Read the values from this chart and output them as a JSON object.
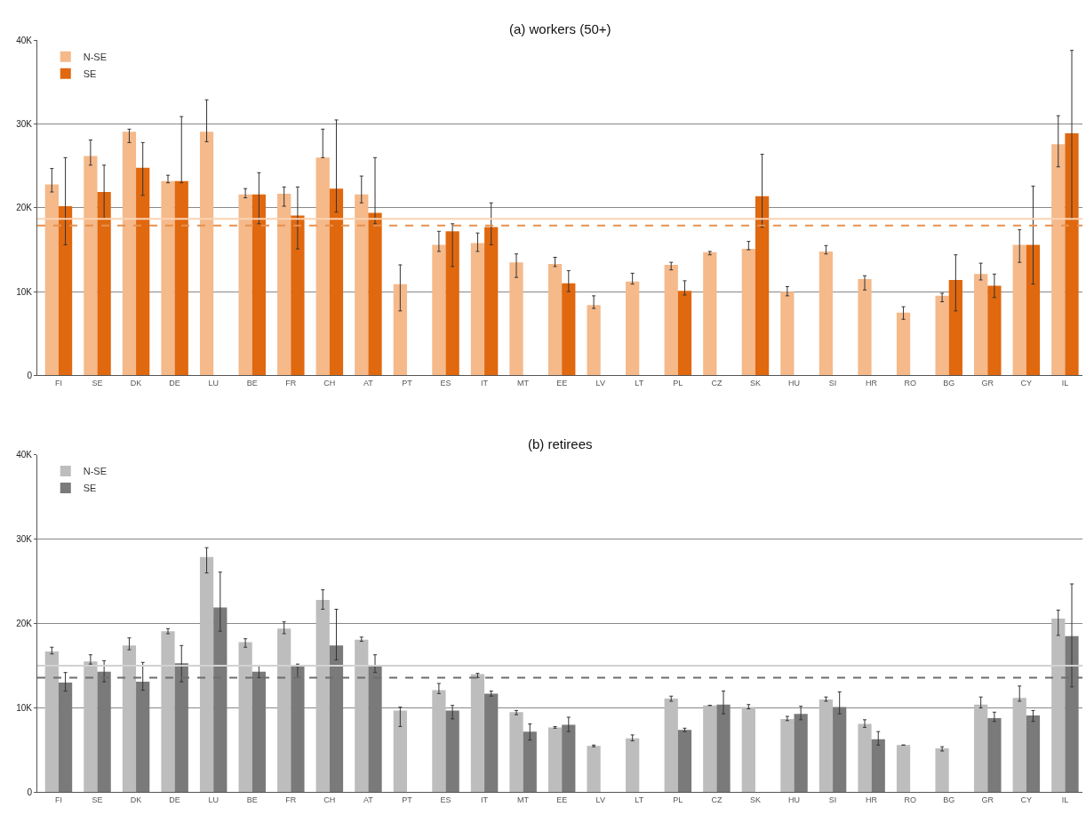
{
  "chart_data": [
    {
      "type": "bar",
      "title": "(a) workers (50+)",
      "categories": [
        "FI",
        "SE",
        "DK",
        "DE",
        "LU",
        "BE",
        "FR",
        "CH",
        "AT",
        "PT",
        "ES",
        "IT",
        "MT",
        "EE",
        "LV",
        "LT",
        "PL",
        "CZ",
        "SK",
        "HU",
        "SI",
        "HR",
        "RO",
        "BG",
        "GR",
        "CY",
        "IL"
      ],
      "series": [
        {
          "name": "N-SE",
          "color": "#f5b98a",
          "values": [
            22.8,
            26.2,
            29.1,
            23.2,
            29.1,
            21.6,
            21.7,
            26.0,
            21.6,
            10.9,
            15.6,
            15.8,
            13.5,
            13.3,
            8.4,
            11.2,
            13.2,
            14.7,
            15.1,
            10.0,
            14.8,
            11.5,
            7.5,
            9.5,
            12.1,
            15.6,
            27.6
          ],
          "errors": [
            [
              21.9,
              24.7
            ],
            [
              25.1,
              28.1
            ],
            [
              27.8,
              29.4
            ],
            [
              23.0,
              23.9
            ],
            [
              27.9,
              32.9
            ],
            [
              21.2,
              22.3
            ],
            [
              20.2,
              22.5
            ],
            [
              26.0,
              29.4
            ],
            [
              20.6,
              23.8
            ],
            [
              7.7,
              13.2
            ],
            [
              14.8,
              17.2
            ],
            [
              14.8,
              17.0
            ],
            [
              11.7,
              14.5
            ],
            [
              13.0,
              14.1
            ],
            [
              8.0,
              9.5
            ],
            [
              10.9,
              12.2
            ],
            [
              12.6,
              13.5
            ],
            [
              14.4,
              14.8
            ],
            [
              15.0,
              16.0
            ],
            [
              9.5,
              10.6
            ],
            [
              14.5,
              15.5
            ],
            [
              10.2,
              11.9
            ],
            [
              6.7,
              8.2
            ],
            [
              8.8,
              9.8
            ],
            [
              11.4,
              13.4
            ],
            [
              13.5,
              17.4
            ],
            [
              24.9,
              31.0
            ]
          ]
        },
        {
          "name": "SE",
          "color": "#e0680f",
          "values": [
            20.2,
            21.9,
            24.8,
            23.2,
            null,
            21.6,
            19.1,
            22.3,
            19.4,
            null,
            17.2,
            17.7,
            null,
            11.0,
            null,
            null,
            10.1,
            null,
            21.4,
            null,
            null,
            null,
            null,
            11.4,
            10.7,
            15.6,
            28.9
          ],
          "errors": [
            [
              15.6,
              26.0
            ],
            [
              18.7,
              25.1
            ],
            [
              21.5,
              27.8
            ],
            [
              23.0,
              30.9
            ],
            null,
            [
              18.1,
              24.2
            ],
            [
              15.1,
              22.5
            ],
            [
              19.5,
              30.5
            ],
            [
              18.1,
              26.0
            ],
            null,
            [
              13.0,
              18.1
            ],
            [
              15.6,
              20.6
            ],
            null,
            [
              10.0,
              12.5
            ],
            null,
            null,
            [
              9.6,
              11.3
            ],
            null,
            [
              17.7,
              26.4
            ],
            null,
            null,
            null,
            null,
            [
              7.7,
              14.4
            ],
            [
              9.3,
              12.1
            ],
            [
              10.9,
              22.6
            ],
            [
              18.7,
              38.8
            ]
          ]
        }
      ],
      "ylim": [
        0,
        40
      ],
      "yticks": [
        0,
        {
          "value": 10,
          "label": "10K"
        },
        {
          "value": 20,
          "label": "20K"
        },
        {
          "value": 30,
          "label": "30K"
        },
        {
          "value": 40,
          "label": "40K"
        }
      ],
      "ref_lines": [
        {
          "axis": "y",
          "value": 18.7,
          "color": "#fbd3b3",
          "line_style": "solid"
        },
        {
          "axis": "y",
          "value": 17.9,
          "color": "#e8914e",
          "line_style": "dashed"
        }
      ],
      "grid": "y",
      "legend": "top left"
    },
    {
      "type": "bar",
      "title": "(b) retirees",
      "categories": [
        "FI",
        "SE",
        "DK",
        "DE",
        "LU",
        "BE",
        "FR",
        "CH",
        "AT",
        "PT",
        "ES",
        "IT",
        "MT",
        "EE",
        "LV",
        "LT",
        "PL",
        "CZ",
        "SK",
        "HU",
        "SI",
        "HR",
        "RO",
        "BG",
        "GR",
        "CY",
        "IL"
      ],
      "series": [
        {
          "name": "N-SE",
          "color": "#bdbdbd",
          "values": [
            16.7,
            15.5,
            17.4,
            19.1,
            27.9,
            17.8,
            19.4,
            22.8,
            18.1,
            9.7,
            12.1,
            14.0,
            9.5,
            7.7,
            5.5,
            6.4,
            11.1,
            10.3,
            10.1,
            8.7,
            11.0,
            8.1,
            5.6,
            5.2,
            10.4,
            11.2,
            20.6
          ],
          "errors": [
            [
              16.4,
              17.2
            ],
            [
              15.2,
              16.3
            ],
            [
              16.9,
              18.3
            ],
            [
              18.8,
              19.4
            ],
            [
              26.0,
              29.0
            ],
            [
              17.2,
              18.2
            ],
            [
              18.8,
              20.2
            ],
            [
              21.7,
              24.0
            ],
            [
              17.9,
              18.4
            ],
            [
              7.8,
              10.1
            ],
            [
              11.7,
              12.9
            ],
            [
              13.6,
              14.1
            ],
            [
              9.2,
              9.7
            ],
            [
              7.6,
              7.8
            ],
            [
              5.4,
              5.6
            ],
            [
              6.1,
              6.8
            ],
            [
              10.8,
              11.4
            ],
            null,
            [
              9.9,
              10.4
            ],
            [
              8.5,
              9.0
            ],
            [
              10.8,
              11.3
            ],
            [
              7.7,
              8.6
            ],
            null,
            [
              4.9,
              5.4
            ],
            [
              10.0,
              11.3
            ],
            [
              10.8,
              12.6
            ],
            [
              18.6,
              21.6
            ]
          ]
        },
        {
          "name": "SE",
          "color": "#7a7a7a",
          "values": [
            13.0,
            14.3,
            13.1,
            15.3,
            21.9,
            14.3,
            14.9,
            17.4,
            15.0,
            null,
            9.7,
            11.7,
            7.2,
            8.0,
            null,
            null,
            7.4,
            10.4,
            null,
            9.3,
            10.1,
            6.3,
            null,
            null,
            8.8,
            9.1,
            18.5
          ],
          "errors": [
            [
              12.0,
              14.2
            ],
            [
              13.1,
              15.6
            ],
            [
              12.1,
              15.4
            ],
            [
              13.1,
              17.4
            ],
            [
              19.1,
              26.1
            ],
            [
              13.6,
              15.0
            ],
            [
              13.6,
              15.2
            ],
            [
              15.7,
              21.7
            ],
            [
              14.2,
              16.3
            ],
            null,
            [
              8.7,
              10.3
            ],
            [
              11.4,
              12.0
            ],
            [
              6.2,
              8.1
            ],
            [
              7.2,
              8.9
            ],
            null,
            null,
            [
              7.2,
              7.6
            ],
            [
              9.3,
              12.0
            ],
            null,
            [
              8.6,
              10.2
            ],
            [
              9.3,
              11.9
            ],
            [
              5.6,
              7.2
            ],
            null,
            null,
            [
              8.4,
              9.5
            ],
            [
              8.4,
              9.7
            ],
            [
              12.5,
              24.7
            ]
          ]
        }
      ],
      "ylim": [
        0,
        40
      ],
      "yticks": [
        0,
        {
          "value": 10,
          "label": "10K"
        },
        {
          "value": 20,
          "label": "20K"
        },
        {
          "value": 30,
          "label": "30K"
        },
        {
          "value": 40,
          "label": "40K"
        }
      ],
      "ref_lines": [
        {
          "axis": "y",
          "value": 15.0,
          "color": "#d2d2d2",
          "line_style": "solid"
        },
        {
          "axis": "y",
          "value": 13.6,
          "color": "#6e6e6e",
          "line_style": "dashed"
        }
      ],
      "grid": "y",
      "legend": "top left"
    }
  ]
}
